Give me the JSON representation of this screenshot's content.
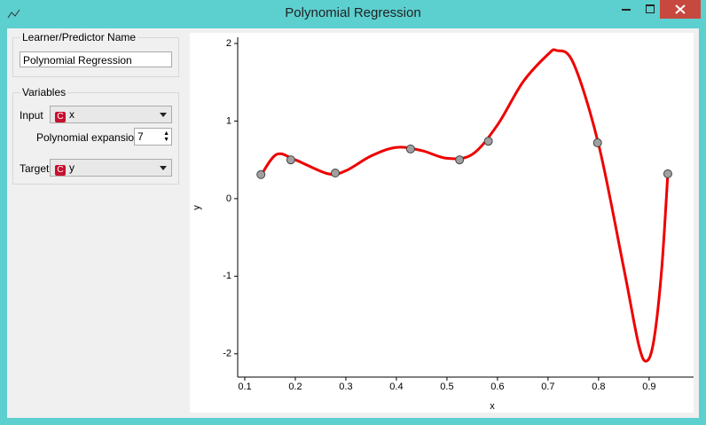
{
  "window": {
    "title": "Polynomial Regression"
  },
  "panel": {
    "name_group": "Learner/Predictor Name",
    "name_value": "Polynomial Regression",
    "variables_group": "Variables",
    "input_label": "Input",
    "input_badge": "C",
    "input_value": "x",
    "expansion_label": "Polynomial expansion:",
    "expansion_value": "7",
    "target_label": "Target",
    "target_badge": "C",
    "target_value": "y"
  },
  "chart_data": {
    "type": "scatter",
    "x_label": "x",
    "y_label": "y",
    "x": [
      0.132,
      0.191,
      0.279,
      0.428,
      0.525,
      0.582,
      0.798,
      0.937
    ],
    "values": [
      0.31,
      0.5,
      0.33,
      0.64,
      0.5,
      0.74,
      0.72,
      0.32
    ],
    "point_color": "#a0a0a0",
    "curve": {
      "color": "#ee0000",
      "x": [
        0.132,
        0.163,
        0.2,
        0.265,
        0.3,
        0.35,
        0.4,
        0.45,
        0.5,
        0.55,
        0.6,
        0.65,
        0.7,
        0.717,
        0.75,
        0.8,
        0.85,
        0.88,
        0.896,
        0.91,
        0.925,
        0.937
      ],
      "values": [
        0.3,
        0.57,
        0.5,
        0.32,
        0.36,
        0.55,
        0.66,
        0.62,
        0.52,
        0.57,
        0.95,
        1.5,
        1.86,
        1.91,
        1.75,
        0.7,
        -0.9,
        -1.9,
        -2.09,
        -1.8,
        -0.9,
        0.32
      ]
    },
    "xlim": [
      0.086,
      0.988
    ],
    "ylim": [
      -2.3,
      2.08
    ],
    "xticks": [
      0.1,
      0.2,
      0.3,
      0.4,
      0.5,
      0.6,
      0.7,
      0.8,
      0.9
    ],
    "yticks": [
      -2,
      -1,
      0,
      1,
      2
    ]
  }
}
